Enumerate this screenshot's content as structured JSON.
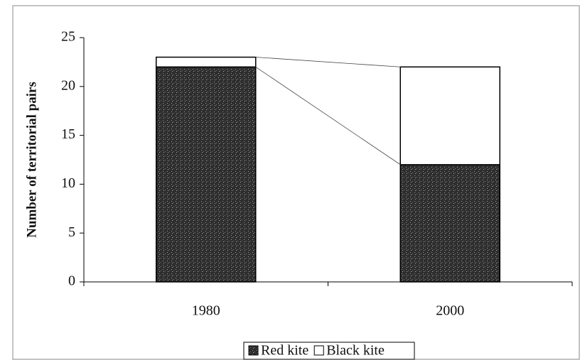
{
  "chart_data": {
    "type": "stacked_bar",
    "y_label": "Number of territorial pairs",
    "categories": [
      "1980",
      "2000"
    ],
    "series": [
      {
        "name": "Red kite",
        "color": "#3a3a3a",
        "values": [
          22,
          12
        ]
      },
      {
        "name": "Black kite",
        "color": "#ffffff",
        "values": [
          1,
          10
        ]
      }
    ],
    "ylim": [
      0,
      25
    ],
    "yticks": [
      0,
      5,
      10,
      15,
      20,
      25
    ],
    "legend": "bottom"
  }
}
